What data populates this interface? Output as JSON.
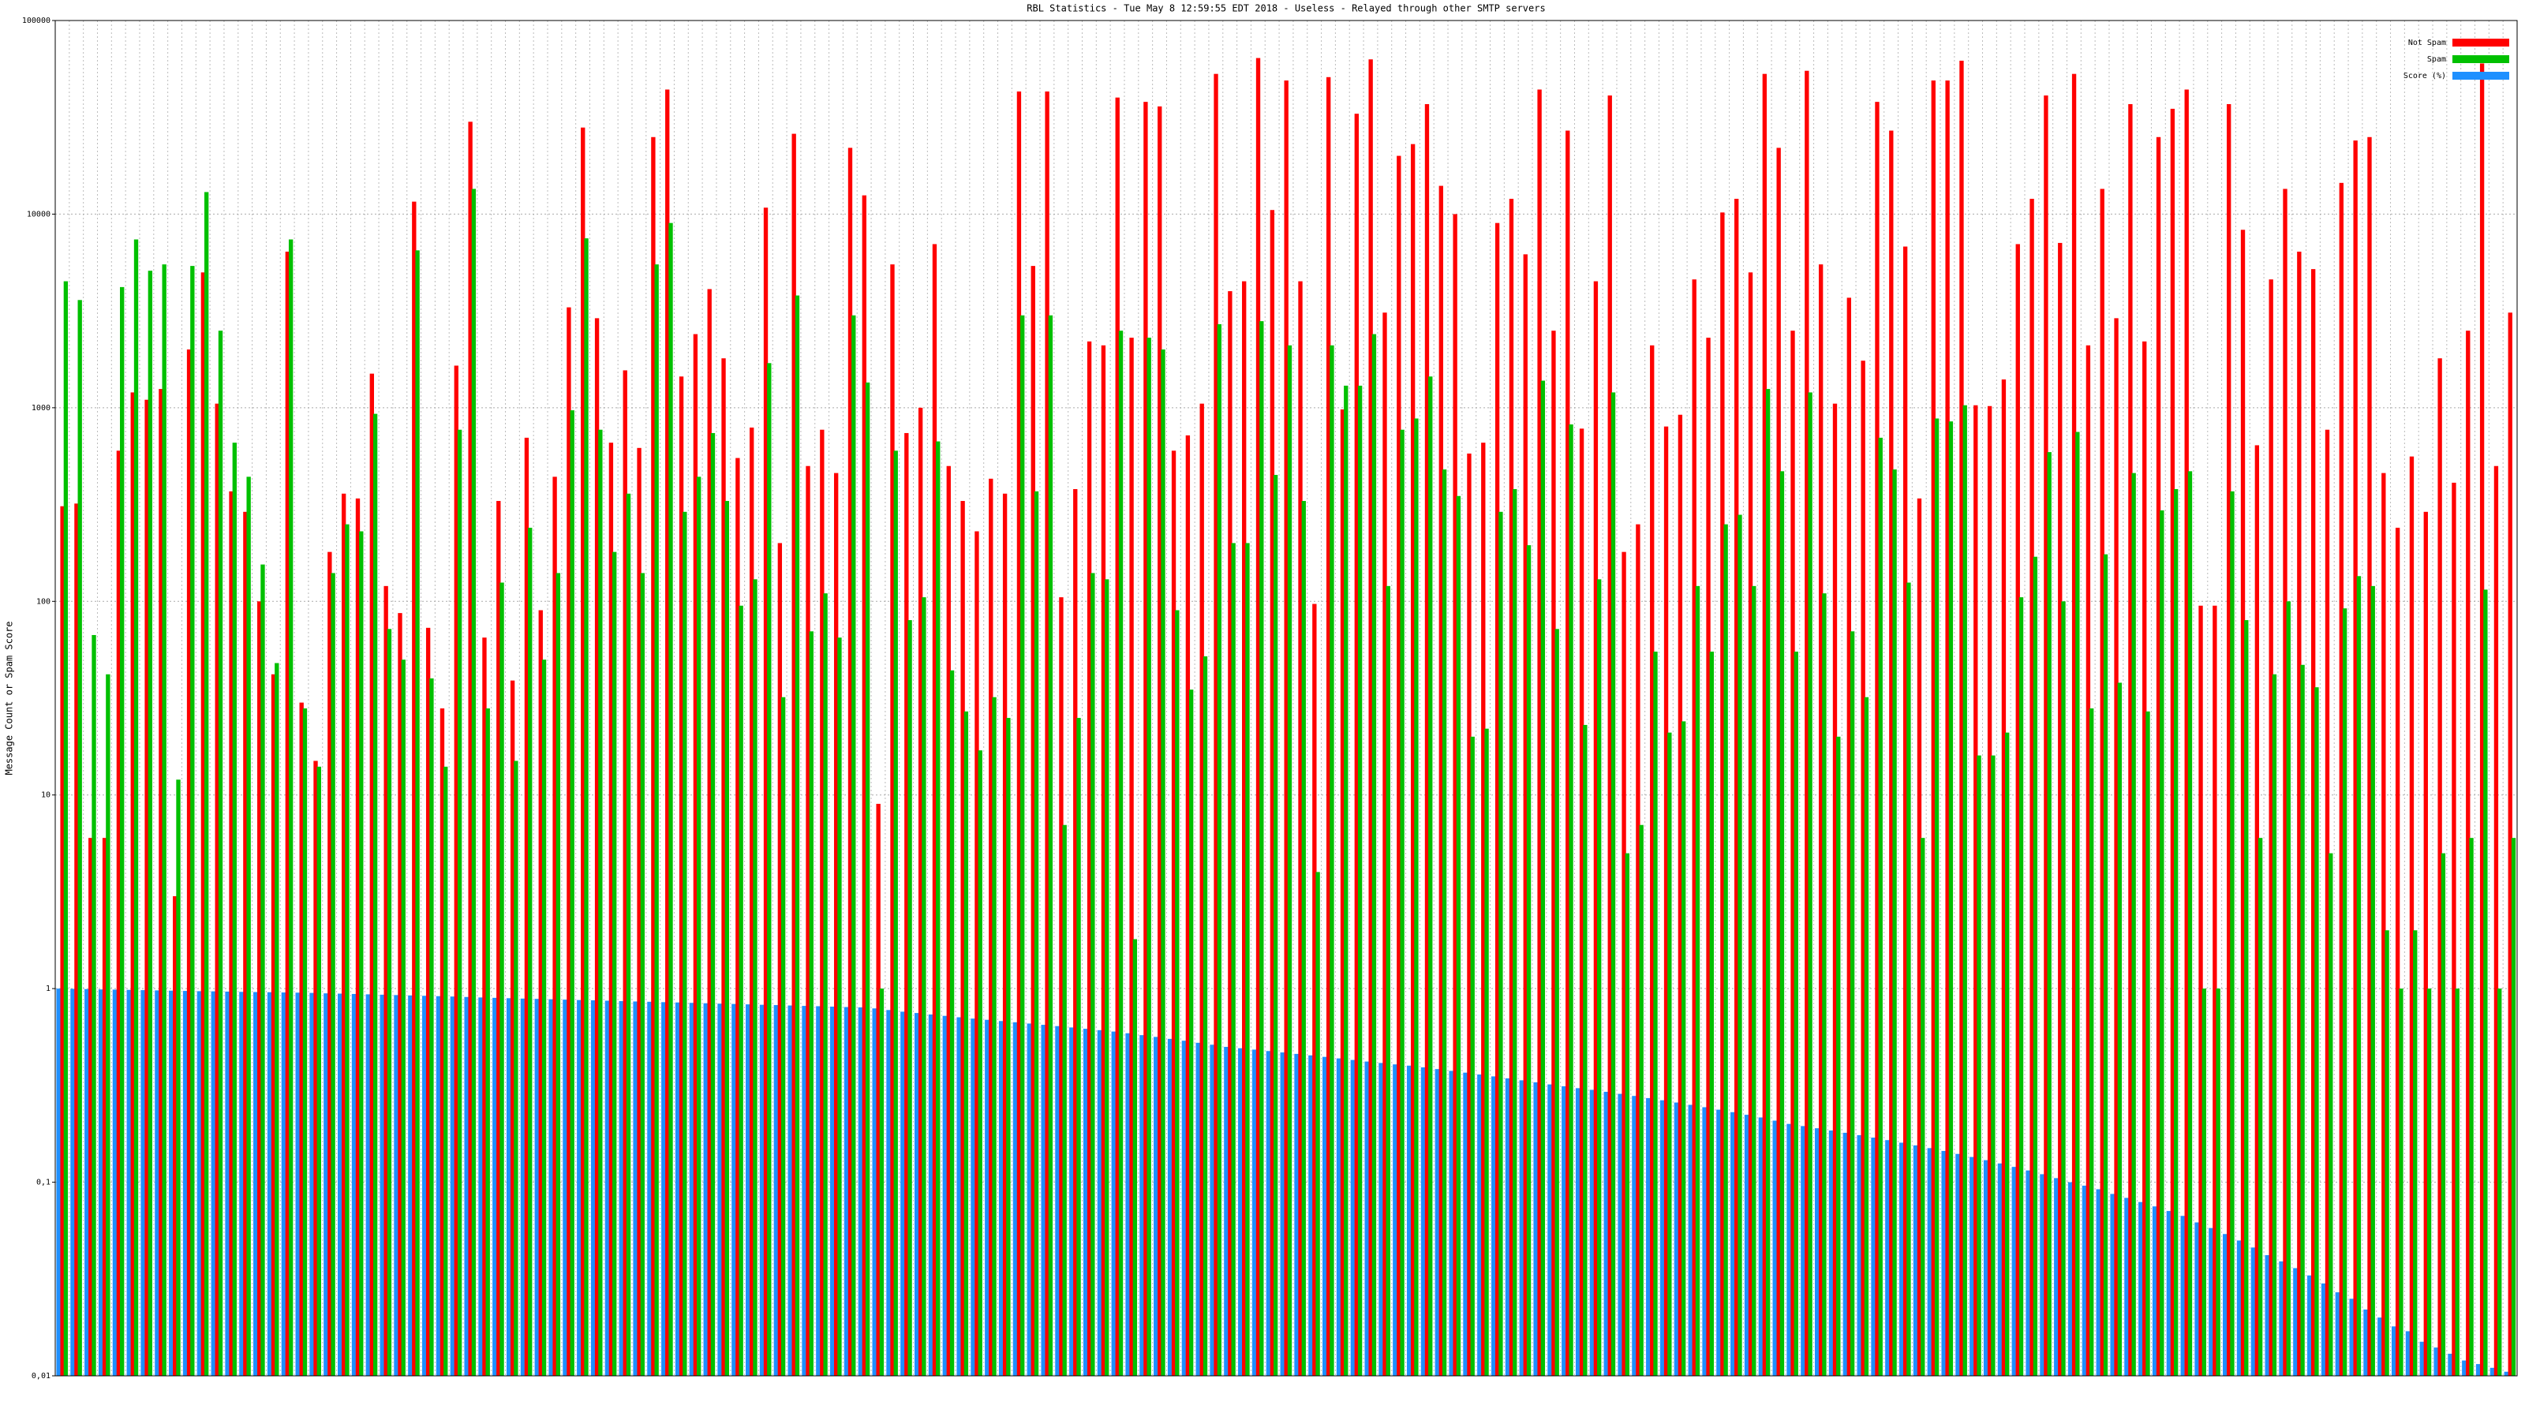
{
  "chart_data": {
    "type": "bar",
    "title": "RBL Statistics - Tue May  8 12:59:55 EDT 2018 - Useless - Relayed through other SMTP servers",
    "y_label": "Message Count or Spam Score",
    "log_scale": true,
    "grid": true,
    "legend": "top-right",
    "ylim": [
      0.01,
      100000
    ],
    "yticks": [
      {
        "value": 0.01,
        "label": "0,01"
      },
      {
        "value": 0.1,
        "label": "0,1"
      },
      1,
      10,
      100,
      1000,
      10000,
      100000
    ],
    "categories": [
      null,
      null,
      null,
      null,
      null,
      null,
      null,
      null,
      null,
      null,
      null,
      null,
      null,
      null,
      null,
      null,
      null,
      null,
      null,
      null,
      null,
      null,
      null,
      null,
      null,
      null,
      null,
      null,
      null,
      null,
      null,
      null,
      null,
      null,
      null,
      null,
      null,
      null,
      null,
      null,
      null,
      null,
      null,
      null,
      null,
      null,
      null,
      null,
      null,
      null,
      null,
      null,
      null,
      null,
      null,
      null,
      null,
      null,
      null,
      null,
      null,
      null,
      null,
      null,
      null,
      null,
      null,
      null,
      null,
      null,
      null,
      null,
      null,
      null,
      null,
      null,
      null,
      null,
      null,
      null,
      null,
      null,
      null,
      null,
      null,
      null,
      null,
      null,
      null,
      null,
      null,
      null,
      null,
      null,
      null,
      null,
      null,
      null,
      null,
      null,
      null,
      null,
      null,
      null,
      null,
      null,
      null,
      null,
      null,
      null,
      null,
      null,
      null,
      null,
      null,
      null,
      null,
      null,
      null,
      null,
      null,
      null,
      null,
      null,
      null,
      null,
      null,
      null,
      null,
      null,
      null,
      null,
      null,
      null,
      null,
      null,
      null,
      null,
      null,
      null,
      null,
      null,
      null,
      null,
      null,
      null,
      null,
      null,
      null,
      null,
      null,
      null,
      null,
      null,
      null,
      null,
      null,
      null,
      null,
      null,
      null,
      null,
      null,
      null,
      null,
      null,
      null,
      null,
      null,
      null,
      null,
      null,
      null,
      null,
      null
    ],
    "series": [
      {
        "name": "Not Spam",
        "color": "#ff0000",
        "values": [
          310,
          320,
          6,
          6,
          600,
          1200,
          1100,
          1250,
          3,
          2000,
          5000,
          1050,
          370,
          290,
          100,
          42,
          6400,
          30,
          15,
          180,
          360,
          340,
          1500,
          120,
          87,
          11600,
          73,
          28,
          1650,
          30000,
          65,
          330,
          39,
          700,
          90,
          440,
          3300,
          28000,
          2900,
          660,
          1560,
          620,
          25000,
          44000,
          1450,
          2400,
          4100,
          1800,
          550,
          790,
          10800,
          200,
          26000,
          500,
          770,
          460,
          22000,
          12500,
          9,
          5500,
          740,
          1000,
          7000,
          500,
          330,
          230,
          430,
          360,
          43000,
          5400,
          43000,
          105,
          380,
          2200,
          2100,
          40000,
          2300,
          38000,
          36000,
          600,
          720,
          1050,
          53000,
          4000,
          4500,
          64000,
          10500,
          49000,
          4500,
          97,
          51000,
          980,
          33000,
          63000,
          3100,
          20000,
          23000,
          37000,
          14000,
          10000,
          580,
          660,
          9000,
          12000,
          6200,
          44000,
          2500,
          27000,
          780,
          4500,
          41000,
          180,
          250,
          2100,
          800,
          920,
          4600,
          2300,
          10200,
          12000,
          5000,
          53000,
          22000,
          2500,
          55000,
          5500,
          1050,
          3700,
          1750,
          38000,
          27000,
          6800,
          340,
          49000,
          49000,
          62000,
          1030,
          1020,
          1400,
          7000,
          12000,
          41000,
          7100,
          53000,
          2100,
          13500,
          2900,
          37000,
          2200,
          25000,
          35000,
          44000,
          95,
          95,
          37000,
          8300,
          640,
          4600,
          13500,
          6400,
          5200,
          770,
          14500,
          24000,
          25000,
          460,
          240,
          560,
          290,
          1800,
          410,
          2500,
          60000,
          500,
          3100
        ]
      },
      {
        "name": "Spam",
        "color": "#00c000",
        "values": [
          4500,
          3600,
          67,
          42,
          4200,
          7400,
          5100,
          5500,
          12,
          5400,
          13000,
          2500,
          660,
          440,
          155,
          48,
          7400,
          28,
          14,
          140,
          250,
          230,
          930,
          72,
          50,
          6500,
          40,
          14,
          770,
          13500,
          28,
          125,
          15,
          240,
          50,
          140,
          970,
          7500,
          770,
          180,
          360,
          140,
          5500,
          9000,
          290,
          440,
          740,
          330,
          95,
          130,
          1700,
          32,
          3800,
          70,
          110,
          65,
          3000,
          1350,
          1,
          600,
          80,
          105,
          670,
          44,
          27,
          17,
          32,
          25,
          3000,
          370,
          3000,
          7,
          25,
          140,
          130,
          2500,
          1.8,
          2300,
          2000,
          90,
          35,
          52,
          2700,
          200,
          200,
          2800,
          450,
          2100,
          330,
          4,
          2100,
          1300,
          1300,
          2400,
          120,
          770,
          880,
          1450,
          480,
          350,
          20,
          22,
          290,
          380,
          195,
          1380,
          72,
          820,
          23,
          130,
          1200,
          5,
          7,
          55,
          21,
          24,
          120,
          55,
          250,
          280,
          120,
          1250,
          470,
          55,
          1200,
          110,
          20,
          70,
          32,
          700,
          480,
          125,
          6,
          880,
          850,
          1030,
          16,
          16,
          21,
          105,
          170,
          590,
          100,
          750,
          28,
          175,
          38,
          460,
          27,
          295,
          380,
          470,
          1,
          1,
          370,
          80,
          6,
          42,
          100,
          47,
          36,
          5,
          92,
          135,
          120,
          2,
          1,
          2,
          1,
          5,
          1,
          6,
          115,
          1,
          6
        ]
      },
      {
        "name": "Score (%)",
        "color": "#1e90ff",
        "values": [
          1,
          0.997,
          0.994,
          0.99,
          0.988,
          0.985,
          0.982,
          0.979,
          0.976,
          0.973,
          0.97,
          0.968,
          0.965,
          0.962,
          0.96,
          0.958,
          0.955,
          0.953,
          0.95,
          0.945,
          0.942,
          0.938,
          0.934,
          0.93,
          0.926,
          0.922,
          0.918,
          0.914,
          0.91,
          0.905,
          0.9,
          0.896,
          0.892,
          0.888,
          0.885,
          0.881,
          0.877,
          0.873,
          0.87,
          0.866,
          0.862,
          0.858,
          0.855,
          0.851,
          0.848,
          0.844,
          0.84,
          0.836,
          0.833,
          0.829,
          0.825,
          0.822,
          0.818,
          0.814,
          0.811,
          0.807,
          0.803,
          0.8,
          0.79,
          0.775,
          0.76,
          0.748,
          0.735,
          0.723,
          0.711,
          0.7,
          0.69,
          0.68,
          0.67,
          0.66,
          0.65,
          0.64,
          0.63,
          0.62,
          0.61,
          0.6,
          0.588,
          0.575,
          0.563,
          0.55,
          0.538,
          0.525,
          0.513,
          0.5,
          0.492,
          0.484,
          0.476,
          0.468,
          0.46,
          0.452,
          0.444,
          0.436,
          0.428,
          0.42,
          0.413,
          0.406,
          0.4,
          0.392,
          0.384,
          0.376,
          0.368,
          0.36,
          0.352,
          0.344,
          0.336,
          0.328,
          0.32,
          0.313,
          0.306,
          0.3,
          0.293,
          0.286,
          0.279,
          0.272,
          0.265,
          0.258,
          0.251,
          0.244,
          0.237,
          0.23,
          0.223,
          0.216,
          0.208,
          0.2,
          0.195,
          0.19,
          0.185,
          0.18,
          0.175,
          0.17,
          0.165,
          0.16,
          0.155,
          0.15,
          0.145,
          0.14,
          0.135,
          0.13,
          0.125,
          0.12,
          0.115,
          0.11,
          0.105,
          0.1,
          0.096,
          0.092,
          0.087,
          0.083,
          0.079,
          0.075,
          0.071,
          0.067,
          0.062,
          0.058,
          0.054,
          0.05,
          0.046,
          0.042,
          0.039,
          0.036,
          0.033,
          0.03,
          0.027,
          0.025,
          0.022,
          0.02,
          0.018,
          0.017,
          0.015,
          0.014,
          0.013,
          0.012,
          0.0115,
          0.011,
          0.0105
        ]
      }
    ]
  }
}
